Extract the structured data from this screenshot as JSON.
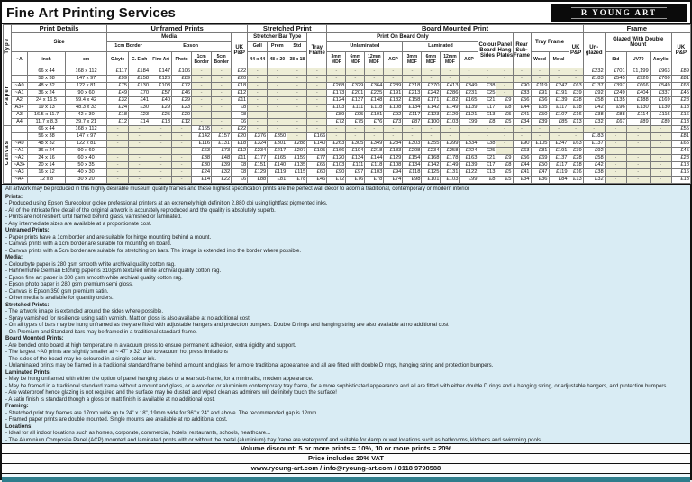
{
  "title": "Fine Art Printing Services",
  "logo": {
    "text": "R YOUNG ART"
  },
  "colors": {
    "accent_teal": "#2e7d8c",
    "notes_bg": "#d9ecf4",
    "dash_cell": "#ededd6",
    "logo_bg": "#0b0b0b"
  },
  "table": {
    "groups": {
      "print_details": "Print Details",
      "unframed": "Unframed Prints",
      "stretched": "Stretched Print",
      "board": "Board Mounted Print",
      "frame": "Frame"
    },
    "headers": {
      "type": "Type",
      "size": "Size",
      "a": "~A",
      "inch": "inch",
      "cm": "cm",
      "media": "Media",
      "border1": "1cm Border",
      "epson": "Epson",
      "cbyte": "C.byte",
      "getch": "G. Etch",
      "fineart": "Fine Art",
      "photo": "Photo",
      "e1cm": "1cm Border",
      "e5cm": "5cm Border",
      "ukpp": "UK P&P",
      "bar_type": "Stretcher Bar Type",
      "gall": "Gall",
      "prem": "Prem",
      "std": "Std",
      "gall_size": "44 x 44",
      "prem_size": "48 x 20",
      "std_size": "38 x 18",
      "tray_frame": "Tray Frame",
      "board_only": "Print On Board Only",
      "unlaminated": "Unlaminated",
      "laminated": "Laminated",
      "mdf3": "3mm MDF",
      "mdf6": "6mm MDF",
      "mdf12": "12mm MDF",
      "acp": "ACP",
      "colour_sides": "Colour Board Sides",
      "panel_plates": "Panel Hang Plates",
      "rear_sub": "Rear Sub-Frame",
      "wood": "Wood",
      "metal": "Metal",
      "unglazed": "Un-glazed",
      "glazed": "Glazed With Double Mount",
      "std_glass": "Std",
      "uv70": "UV70",
      "acrylic": "Acrylic"
    },
    "row_groups": [
      {
        "type": "Paper",
        "rows": [
          [
            "",
            "66 x 44",
            "168 x 112",
            "£117",
            "£184",
            "£147",
            "£106",
            "-",
            "-",
            "£22",
            "-",
            "-",
            "-",
            "-",
            "-",
            "-",
            "-",
            "-",
            "-",
            "-",
            "-",
            "-",
            "-",
            "-",
            "-",
            "-",
            "-",
            "-",
            "£232",
            "£701",
            "£1,199",
            "£963",
            "£89"
          ],
          [
            "",
            "58 x 38",
            "147 x 97",
            "£99",
            "£158",
            "£126",
            "£89",
            "-",
            "-",
            "£20",
            "-",
            "-",
            "-",
            "-",
            "-",
            "-",
            "-",
            "-",
            "-",
            "-",
            "-",
            "-",
            "-",
            "-",
            "-",
            "-",
            "-",
            "-",
            "£183",
            "£545",
            "£926",
            "£760",
            "£81"
          ],
          [
            "~A0",
            "48 x 32",
            "122 x 81",
            "£75",
            "£130",
            "£103",
            "£72",
            "-",
            "-",
            "£18",
            "-",
            "-",
            "-",
            "-",
            "£268",
            "£329",
            "£364",
            "£289",
            "£318",
            "£370",
            "£413",
            "£349",
            "£38",
            "-",
            "£90",
            "£119",
            "£247",
            "£63",
            "£137",
            "£397",
            "£666",
            "£549",
            "£68"
          ],
          [
            "~A1",
            "36 x 24",
            "90 x 60",
            "£49",
            "£70",
            "£57",
            "£46",
            "-",
            "-",
            "£12",
            "-",
            "-",
            "-",
            "-",
            "£173",
            "£201",
            "£225",
            "£191",
            "£213",
            "£242",
            "£286",
            "£231",
            "£25",
            "-",
            "£83",
            "£91",
            "£191",
            "£39",
            "£92",
            "£249",
            "£404",
            "£337",
            "£45"
          ],
          [
            "A2",
            "24 x 16.5",
            "59.4 x 42",
            "£32",
            "£41",
            "£40",
            "£29",
            "-",
            "-",
            "£11",
            "-",
            "-",
            "-",
            "-",
            "£124",
            "£137",
            "£148",
            "£132",
            "£158",
            "£171",
            "£182",
            "£165",
            "£21",
            "£9",
            "£56",
            "£66",
            "£139",
            "£28",
            "£58",
            "£135",
            "£188",
            "£169",
            "£28"
          ],
          [
            "A3+",
            "19 x 13",
            "48.3 x 33",
            "£24",
            "£30",
            "£29",
            "£23",
            "-",
            "-",
            "£8",
            "-",
            "-",
            "-",
            "-",
            "£103",
            "£111",
            "£118",
            "£108",
            "£134",
            "£142",
            "£149",
            "£139",
            "£17",
            "£8",
            "£44",
            "£55",
            "£117",
            "£18",
            "£42",
            "£96",
            "£130",
            "£130",
            "£18"
          ],
          [
            "A3",
            "16.5 x 11.7",
            "42 x 30",
            "£18",
            "£23",
            "£25",
            "£20",
            "-",
            "-",
            "£8",
            "-",
            "-",
            "-",
            "-",
            "£89",
            "£95",
            "£101",
            "£92",
            "£117",
            "£123",
            "£129",
            "£121",
            "£13",
            "£5",
            "£41",
            "£50",
            "£107",
            "£16",
            "£38",
            "£88",
            "£114",
            "£116",
            "£16"
          ],
          [
            "A4",
            "11.7 x 8.3",
            "29.7 x 21",
            "£12",
            "£14",
            "£13",
            "£12",
            "-",
            "-",
            "£6",
            "-",
            "-",
            "-",
            "-",
            "£72",
            "£75",
            "£76",
            "£73",
            "£87",
            "£100",
            "£103",
            "£99",
            "£8",
            "£5",
            "£34",
            "£39",
            "£85",
            "£13",
            "£32",
            "£67",
            "£89",
            "£89",
            "£13"
          ]
        ]
      },
      {
        "type": "Canvas",
        "rows": [
          [
            "",
            "66 x 44",
            "168 x 112",
            "-",
            "-",
            "-",
            "-",
            "£165",
            "-",
            "£22",
            "-",
            "-",
            "-",
            "-",
            "-",
            "-",
            "-",
            "-",
            "-",
            "-",
            "-",
            "-",
            "-",
            "-",
            "-",
            "-",
            "-",
            "-",
            "-",
            "-",
            "-",
            "-",
            "£55"
          ],
          [
            "",
            "56 x 38",
            "147 x 97",
            "-",
            "-",
            "-",
            "-",
            "£142",
            "£157",
            "£20",
            "£376",
            "£350",
            "-",
            "£166",
            "-",
            "-",
            "-",
            "-",
            "-",
            "-",
            "-",
            "-",
            "-",
            "-",
            "-",
            "-",
            "-",
            "-",
            "£183",
            "-",
            "-",
            "-",
            "£81"
          ],
          [
            "~A0",
            "48 x 32",
            "122 x 81",
            "-",
            "-",
            "-",
            "-",
            "£116",
            "£131",
            "£18",
            "£324",
            "£301",
            "£288",
            "£140",
            "£263",
            "£305",
            "£349",
            "£284",
            "£303",
            "£355",
            "£399",
            "£334",
            "£38",
            "-",
            "£90",
            "£105",
            "£247",
            "£63",
            "£137",
            "-",
            "-",
            "-",
            "£65"
          ],
          [
            "~A1",
            "36 x 24",
            "90 x 60",
            "-",
            "-",
            "-",
            "-",
            "£63",
            "£73",
            "£12",
            "£234",
            "£217",
            "£207",
            "£105",
            "£166",
            "£194",
            "£218",
            "£183",
            "£208",
            "£234",
            "£258",
            "£224",
            "£25",
            "-",
            "£63",
            "£81",
            "£191",
            "£39",
            "£92",
            "-",
            "-",
            "-",
            "£45"
          ],
          [
            "~A2",
            "24 x 16",
            "60 x 40",
            "-",
            "-",
            "-",
            "-",
            "£38",
            "£48",
            "£11",
            "£177",
            "£165",
            "£159",
            "£77",
            "£120",
            "£134",
            "£144",
            "£129",
            "£154",
            "£168",
            "£178",
            "£163",
            "£21",
            "£9",
            "£56",
            "£69",
            "£137",
            "£28",
            "£58",
            "-",
            "-",
            "-",
            "£28"
          ],
          [
            "~A3+",
            "20 x 14",
            "50 x 35",
            "-",
            "-",
            "-",
            "-",
            "£30",
            "£39",
            "£8",
            "£151",
            "£140",
            "£135",
            "£65",
            "£103",
            "£111",
            "£118",
            "£108",
            "£134",
            "£142",
            "£149",
            "£139",
            "£17",
            "£8",
            "£44",
            "£50",
            "£117",
            "£18",
            "£42",
            "-",
            "-",
            "-",
            "£18"
          ],
          [
            "~A3",
            "16 x 12",
            "40 x 30",
            "-",
            "-",
            "-",
            "-",
            "£24",
            "£32",
            "£8",
            "£129",
            "£119",
            "£115",
            "£60",
            "£90",
            "£97",
            "£103",
            "£94",
            "£118",
            "£125",
            "£131",
            "£122",
            "£13",
            "£5",
            "£41",
            "£47",
            "£119",
            "£16",
            "£38",
            "-",
            "-",
            "-",
            "£16"
          ],
          [
            "~A4",
            "12 x 8",
            "30 x 20",
            "-",
            "-",
            "-",
            "-",
            "£14",
            "£22",
            "£6",
            "£88",
            "£81",
            "£78",
            "£46",
            "£72",
            "£76",
            "£78",
            "£74",
            "£98",
            "£101",
            "£103",
            "£99",
            "£8",
            "£5",
            "£34",
            "£36",
            "£84",
            "£13",
            "£32",
            "-",
            "-",
            "-",
            "£13"
          ]
        ]
      }
    ]
  },
  "notes": {
    "intro": "All artwork may be produced in this highly desirable museum quality frames and these highest specification prints are the perfect wall décor to adorn a traditional, contemporary or modern interior",
    "sections": [
      {
        "heading": "Prints:",
        "lines": [
          "- Produced using Epson Surecolour giclee professional printers at an extremely high definition 2,880 dpi using lightfast pigmented inks.",
          "- All of the intricate fine detail of the original artwork is accurately reproduced and the quality is absolutely superb.",
          "- Prints are not resilient until framed behind glass, varnished or laminated.",
          "- Any intermediate sizes are available at a proportionate cost."
        ]
      },
      {
        "heading": "Unframed Prints:",
        "lines": [
          "- Paper prints have a 1cm border and are suitable for hinge mounting behind a mount.",
          "- Canvas prints with a 1cm border are suitable for mounting on board.",
          "- Canvas prints with a 5cm border are suitable for stretching on bars. The image is extended into the border where possible."
        ]
      },
      {
        "heading": "Media:",
        "lines": [
          "- Colourbyte paper is 280 gsm smooth white archival quality cotton rag.",
          "- Hahnemuhle German Etching paper is 310gsm textured white archival quality cotton rag.",
          "- Epson fine art paper is 300 gsm smooth white archival quality cotton rag.",
          "- Epson photo paper is 280 gsm premium semi gloss.",
          "- Canvas is Epson 350 gsm premium satin.",
          "- Other media is available for quantity orders."
        ]
      },
      {
        "heading": "Stretched Prints:",
        "lines": [
          "- The artwork image is extended around the sides where possible.",
          "- Spray varnished for resilience using satin varnish. Matt or gloss is also available at no additional cost.",
          "- On all types of bars may be hung unframed as they are fitted with adjustable hangers and protection bumpers. Double D rings and hanging string are also available at no additional cost",
          "- On Premium and Standard bars may be framed in a traditional standard frame."
        ]
      },
      {
        "heading": "Board Mounted Prints:",
        "lines": [
          "- Are bonded onto board at high temperature in a vacuum press to ensure permanent adhesion, extra rigidity and support.",
          "- The largest ~A0 prints are slightly smaller at ~ 47\" x 32\" due to vacuum hot press limitations",
          "- The sides of the board may be coloured in a single colour ink.",
          "- Unlaminated prints may be framed in a traditional standard frame behind a mount and glass for a more traditional appearance and all are fitted with double D rings, hanging string and protection bumpers."
        ]
      },
      {
        "heading": "Laminated Prints:",
        "lines": [
          "- May be hung unframed with either the option of panel hanging plates or a rear sub-frame, for a minimalist, modern appearance.",
          "- May be framed in a traditional standard frame without a mount and glass, or a wooden or aluminium contemporary tray frame, for a more sophisticated appearance and all are fitted with either double D rings and a hanging string, or adjustable hangers, and protection bumpers",
          "- Are waterproof hence glazing is not required and the surface may be dusted and wiped clean as admirers will definitely touch the surface!",
          "- A satin finish is standard though a gloss or matt finish is available at no additional cost."
        ]
      },
      {
        "heading": "Framing:",
        "lines": [
          "- Stretched print tray frames are 17mm wide up to 24\" x 18\", 19mm wide for 36\" x 24\" and above. The recommended gap is 12mm",
          "- Framed paper prints are double mounted. Single mounts are available at no additional cost."
        ]
      },
      {
        "heading": "Locations:",
        "lines": [
          "- Ideal for all indoor locations such as homes, corporate, commercial, hotels, restaurants, schools, healthcare...",
          "- The Aluminium Composite Panel (ACP) mounted and laminated prints with or without the metal (aluminium) tray frame are waterproof and suitable for damp or wet locations such as bathrooms, kitchens and swimming pools."
        ]
      }
    ]
  },
  "footer": {
    "line1": "Volume discount: 5 or more prints = 10%, 10 or more prints = 20%",
    "line2": "Price includes 20% VAT",
    "line3": "www.ryoung-art.com / info@ryoung-art.com / 0118 9798588"
  }
}
